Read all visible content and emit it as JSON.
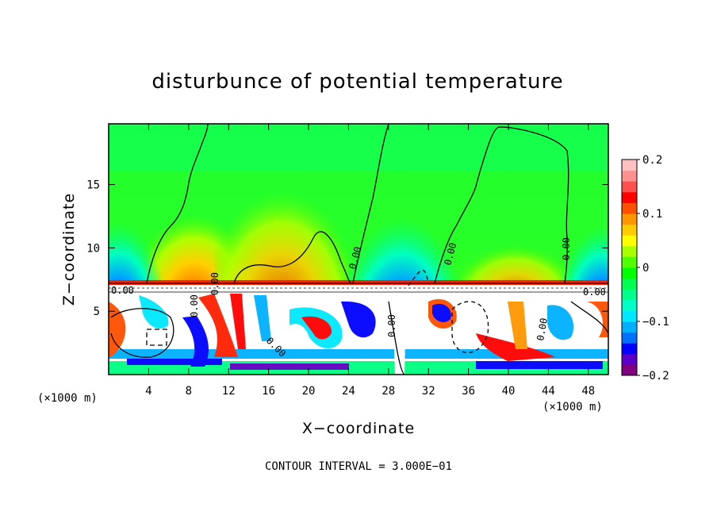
{
  "chart_data": {
    "type": "heatmap",
    "title": "disturbunce of potential temperature",
    "xlabel": "X−coordinate",
    "ylabel": "Z−coordinate",
    "x_unit_left": "(×1000 m)",
    "x_unit_right": "(×1000 m)",
    "footer": "CONTOUR INTERVAL = 3.000E−01",
    "xlim": [
      0,
      50
    ],
    "ylim": [
      0,
      19.8
    ],
    "x_ticks": [
      "4",
      "8",
      "12",
      "16",
      "20",
      "24",
      "28",
      "32",
      "36",
      "40",
      "44",
      "48"
    ],
    "y_ticks": [
      "5",
      "10",
      "15"
    ],
    "colorbar": {
      "vmin": -0.2,
      "vmax": 0.2,
      "tick_labels": [
        "0.2",
        "0.1",
        "0",
        "−0.1",
        "−0.2"
      ],
      "colors": [
        "#800080",
        "#5a00c8",
        "#0000ff",
        "#0070ff",
        "#00b0ff",
        "#00e8ff",
        "#00ffc8",
        "#00ff8c",
        "#00ff50",
        "#00ff00",
        "#50ff00",
        "#a8ff00",
        "#ffff00",
        "#ffcc00",
        "#ff9600",
        "#ff5000",
        "#ff0000",
        "#ff5050",
        "#ff9090",
        "#ffc0c0"
      ]
    },
    "contour_labels": [
      "0.00",
      "0.00",
      "0.00",
      "0.00",
      "0.00",
      "0.00",
      "0.00",
      "0.00",
      "0.00",
      "0.00"
    ]
  }
}
